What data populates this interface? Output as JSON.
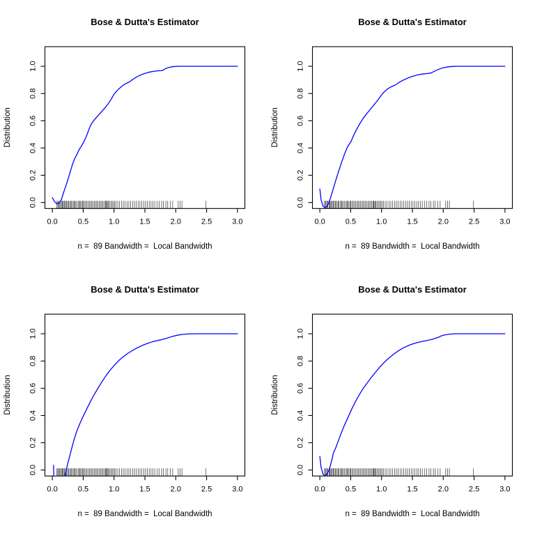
{
  "figure": {
    "background": "#ffffff",
    "curve_color": "#0000ff",
    "axis_color": "#000000",
    "rug_color": "#000000",
    "layout": "2x2 grid of identical R-style CDF plots"
  },
  "chart_data": [
    {
      "type": "line",
      "panel": "top-left",
      "title": "Bose & Dutta's Estimator",
      "xlabel": "n =  89 Bandwidth =  Local Bandwidth",
      "ylabel": "Distribution",
      "n": 89,
      "bandwidth": "Local Bandwidth",
      "xlim": [
        -0.12,
        3.12
      ],
      "ylim": [
        -0.044,
        1.144
      ],
      "xticks": [
        "0.0",
        "0.5",
        "1.0",
        "1.5",
        "2.0",
        "2.5",
        "3.0"
      ],
      "xtick_values": [
        0,
        0.5,
        1.0,
        1.5,
        2.0,
        2.5,
        3.0
      ],
      "yticks": [
        "0.0",
        "0.2",
        "0.4",
        "0.6",
        "0.8",
        "1.0"
      ],
      "ytick_values": [
        0,
        0.2,
        0.4,
        0.6,
        0.8,
        1.0
      ],
      "grid": false,
      "legend": null,
      "line_color": "#0000ff",
      "curve": [
        [
          0.0,
          0.035
        ],
        [
          0.03,
          0.01
        ],
        [
          0.06,
          -0.005
        ],
        [
          0.09,
          -0.01
        ],
        [
          0.12,
          0.0
        ],
        [
          0.15,
          0.025
        ],
        [
          0.18,
          0.07
        ],
        [
          0.21,
          0.11
        ],
        [
          0.24,
          0.15
        ],
        [
          0.27,
          0.195
        ],
        [
          0.3,
          0.24
        ],
        [
          0.33,
          0.285
        ],
        [
          0.36,
          0.32
        ],
        [
          0.39,
          0.345
        ],
        [
          0.42,
          0.375
        ],
        [
          0.45,
          0.4
        ],
        [
          0.48,
          0.42
        ],
        [
          0.52,
          0.455
        ],
        [
          0.56,
          0.495
        ],
        [
          0.6,
          0.545
        ],
        [
          0.63,
          0.575
        ],
        [
          0.66,
          0.595
        ],
        [
          0.7,
          0.617
        ],
        [
          0.75,
          0.643
        ],
        [
          0.8,
          0.668
        ],
        [
          0.85,
          0.693
        ],
        [
          0.9,
          0.722
        ],
        [
          0.95,
          0.755
        ],
        [
          1.0,
          0.795
        ],
        [
          1.05,
          0.822
        ],
        [
          1.1,
          0.843
        ],
        [
          1.15,
          0.862
        ],
        [
          1.2,
          0.875
        ],
        [
          1.25,
          0.885
        ],
        [
          1.3,
          0.903
        ],
        [
          1.36,
          0.92
        ],
        [
          1.43,
          0.936
        ],
        [
          1.5,
          0.948
        ],
        [
          1.57,
          0.957
        ],
        [
          1.64,
          0.963
        ],
        [
          1.71,
          0.967
        ],
        [
          1.78,
          0.968
        ],
        [
          1.83,
          0.982
        ],
        [
          1.89,
          0.992
        ],
        [
          1.96,
          0.998
        ],
        [
          2.05,
          1.0
        ],
        [
          2.15,
          1.0
        ],
        [
          3.0,
          1.0
        ]
      ],
      "rug_x": [
        0.07,
        0.09,
        0.1,
        0.12,
        0.13,
        0.15,
        0.16,
        0.17,
        0.19,
        0.2,
        0.22,
        0.23,
        0.25,
        0.26,
        0.28,
        0.3,
        0.31,
        0.33,
        0.35,
        0.36,
        0.38,
        0.4,
        0.42,
        0.44,
        0.45,
        0.47,
        0.49,
        0.5,
        0.52,
        0.54,
        0.56,
        0.58,
        0.6,
        0.62,
        0.64,
        0.66,
        0.68,
        0.7,
        0.72,
        0.74,
        0.76,
        0.78,
        0.8,
        0.82,
        0.84,
        0.86,
        0.87,
        0.88,
        0.9,
        0.91,
        0.93,
        0.95,
        0.97,
        0.99,
        1.01,
        1.03,
        1.06,
        1.09,
        1.12,
        1.15,
        1.18,
        1.21,
        1.24,
        1.27,
        1.3,
        1.33,
        1.36,
        1.39,
        1.42,
        1.45,
        1.48,
        1.51,
        1.54,
        1.57,
        1.6,
        1.63,
        1.66,
        1.7,
        1.73,
        1.77,
        1.8,
        1.84,
        1.87,
        1.91,
        1.95,
        2.04,
        2.07,
        2.1,
        2.49
      ]
    },
    {
      "type": "line",
      "panel": "top-right",
      "title": "Bose & Dutta's Estimator",
      "xlabel": "n =  89 Bandwidth =  Local Bandwidth",
      "ylabel": "Distribution",
      "n": 89,
      "bandwidth": "Local Bandwidth",
      "xlim": [
        -0.12,
        3.12
      ],
      "ylim": [
        -0.044,
        1.144
      ],
      "xticks": [
        "0.0",
        "0.5",
        "1.0",
        "1.5",
        "2.0",
        "2.5",
        "3.0"
      ],
      "xtick_values": [
        0,
        0.5,
        1.0,
        1.5,
        2.0,
        2.5,
        3.0
      ],
      "yticks": [
        "0.0",
        "0.2",
        "0.4",
        "0.6",
        "0.8",
        "1.0"
      ],
      "ytick_values": [
        0,
        0.2,
        0.4,
        0.6,
        0.8,
        1.0
      ],
      "grid": false,
      "legend": null,
      "line_color": "#0000ff",
      "curve": [
        [
          0.0,
          0.1
        ],
        [
          0.02,
          0.02
        ],
        [
          0.05,
          -0.025
        ],
        [
          0.08,
          -0.038
        ],
        [
          0.11,
          -0.03
        ],
        [
          0.14,
          -0.008
        ],
        [
          0.17,
          0.03
        ],
        [
          0.2,
          0.075
        ],
        [
          0.24,
          0.135
        ],
        [
          0.28,
          0.195
        ],
        [
          0.32,
          0.25
        ],
        [
          0.36,
          0.305
        ],
        [
          0.4,
          0.355
        ],
        [
          0.45,
          0.41
        ],
        [
          0.5,
          0.443
        ],
        [
          0.55,
          0.495
        ],
        [
          0.6,
          0.54
        ],
        [
          0.65,
          0.58
        ],
        [
          0.7,
          0.617
        ],
        [
          0.76,
          0.652
        ],
        [
          0.82,
          0.685
        ],
        [
          0.88,
          0.718
        ],
        [
          0.94,
          0.752
        ],
        [
          1.0,
          0.79
        ],
        [
          1.05,
          0.815
        ],
        [
          1.1,
          0.835
        ],
        [
          1.16,
          0.85
        ],
        [
          1.22,
          0.862
        ],
        [
          1.28,
          0.88
        ],
        [
          1.35,
          0.898
        ],
        [
          1.42,
          0.913
        ],
        [
          1.5,
          0.926
        ],
        [
          1.58,
          0.936
        ],
        [
          1.66,
          0.943
        ],
        [
          1.74,
          0.947
        ],
        [
          1.8,
          0.95
        ],
        [
          1.85,
          0.962
        ],
        [
          1.91,
          0.975
        ],
        [
          1.98,
          0.987
        ],
        [
          2.05,
          0.994
        ],
        [
          2.12,
          0.998
        ],
        [
          2.22,
          1.0
        ],
        [
          3.0,
          1.0
        ]
      ],
      "rug_x": [
        0.07,
        0.09,
        0.1,
        0.12,
        0.13,
        0.15,
        0.16,
        0.17,
        0.19,
        0.2,
        0.22,
        0.23,
        0.25,
        0.26,
        0.28,
        0.3,
        0.31,
        0.33,
        0.35,
        0.36,
        0.38,
        0.4,
        0.42,
        0.44,
        0.45,
        0.47,
        0.49,
        0.5,
        0.52,
        0.54,
        0.56,
        0.58,
        0.6,
        0.62,
        0.64,
        0.66,
        0.68,
        0.7,
        0.72,
        0.74,
        0.76,
        0.78,
        0.8,
        0.82,
        0.84,
        0.86,
        0.87,
        0.88,
        0.9,
        0.91,
        0.93,
        0.95,
        0.97,
        0.99,
        1.01,
        1.03,
        1.06,
        1.09,
        1.12,
        1.15,
        1.18,
        1.21,
        1.24,
        1.27,
        1.3,
        1.33,
        1.36,
        1.39,
        1.42,
        1.45,
        1.48,
        1.51,
        1.54,
        1.57,
        1.6,
        1.63,
        1.66,
        1.7,
        1.73,
        1.77,
        1.8,
        1.84,
        1.87,
        1.91,
        1.95,
        2.04,
        2.07,
        2.1,
        2.49
      ]
    },
    {
      "type": "line",
      "panel": "bottom-left",
      "title": "Bose & Dutta's Estimator",
      "xlabel": "n =  89 Bandwidth =  Local Bandwidth",
      "ylabel": "Distribution",
      "n": 89,
      "bandwidth": "Local Bandwidth",
      "xlim": [
        -0.12,
        3.12
      ],
      "ylim": [
        -0.044,
        1.144
      ],
      "xticks": [
        "0.0",
        "0.5",
        "1.0",
        "1.5",
        "2.0",
        "2.5",
        "3.0"
      ],
      "xtick_values": [
        0,
        0.5,
        1.0,
        1.5,
        2.0,
        2.5,
        3.0
      ],
      "yticks": [
        "0.0",
        "0.2",
        "0.4",
        "0.6",
        "0.8",
        "1.0"
      ],
      "ytick_values": [
        0,
        0.2,
        0.4,
        0.6,
        0.8,
        1.0
      ],
      "grid": false,
      "legend": null,
      "line_color": "#0000ff",
      "curve": [
        [
          0.02,
          0.035
        ],
        [
          0.025,
          -0.06
        ],
        [
          0.05,
          -0.12
        ],
        [
          0.12,
          -0.15
        ],
        [
          0.18,
          -0.09
        ],
        [
          0.205,
          -0.044
        ],
        [
          0.225,
          0.0
        ],
        [
          0.26,
          0.065
        ],
        [
          0.3,
          0.135
        ],
        [
          0.35,
          0.22
        ],
        [
          0.4,
          0.29
        ],
        [
          0.45,
          0.345
        ],
        [
          0.5,
          0.395
        ],
        [
          0.56,
          0.45
        ],
        [
          0.62,
          0.505
        ],
        [
          0.68,
          0.555
        ],
        [
          0.74,
          0.6
        ],
        [
          0.8,
          0.645
        ],
        [
          0.87,
          0.693
        ],
        [
          0.94,
          0.735
        ],
        [
          1.01,
          0.772
        ],
        [
          1.08,
          0.805
        ],
        [
          1.15,
          0.832
        ],
        [
          1.22,
          0.855
        ],
        [
          1.3,
          0.878
        ],
        [
          1.38,
          0.898
        ],
        [
          1.46,
          0.915
        ],
        [
          1.54,
          0.929
        ],
        [
          1.62,
          0.941
        ],
        [
          1.7,
          0.95
        ],
        [
          1.78,
          0.958
        ],
        [
          1.86,
          0.968
        ],
        [
          1.94,
          0.98
        ],
        [
          2.02,
          0.989
        ],
        [
          2.1,
          0.995
        ],
        [
          2.2,
          0.999
        ],
        [
          2.35,
          1.0
        ],
        [
          3.0,
          1.0
        ]
      ],
      "rug_x": [
        0.07,
        0.09,
        0.1,
        0.12,
        0.13,
        0.15,
        0.16,
        0.17,
        0.19,
        0.2,
        0.22,
        0.23,
        0.25,
        0.26,
        0.28,
        0.3,
        0.31,
        0.33,
        0.35,
        0.36,
        0.38,
        0.4,
        0.42,
        0.44,
        0.45,
        0.47,
        0.49,
        0.5,
        0.52,
        0.54,
        0.56,
        0.58,
        0.6,
        0.62,
        0.64,
        0.66,
        0.68,
        0.7,
        0.72,
        0.74,
        0.76,
        0.78,
        0.8,
        0.82,
        0.84,
        0.86,
        0.87,
        0.88,
        0.9,
        0.91,
        0.93,
        0.95,
        0.97,
        0.99,
        1.01,
        1.03,
        1.06,
        1.09,
        1.12,
        1.15,
        1.18,
        1.21,
        1.24,
        1.27,
        1.3,
        1.33,
        1.36,
        1.39,
        1.42,
        1.45,
        1.48,
        1.51,
        1.54,
        1.57,
        1.6,
        1.63,
        1.66,
        1.7,
        1.73,
        1.77,
        1.8,
        1.84,
        1.87,
        1.91,
        1.95,
        2.04,
        2.07,
        2.1,
        2.49
      ]
    },
    {
      "type": "line",
      "panel": "bottom-right",
      "title": "Bose & Dutta's Estimator",
      "xlabel": "n =  89 Bandwidth =  Local Bandwidth",
      "ylabel": "Distribution",
      "n": 89,
      "bandwidth": "Local Bandwidth",
      "xlim": [
        -0.12,
        3.12
      ],
      "ylim": [
        -0.044,
        1.144
      ],
      "xticks": [
        "0.0",
        "0.5",
        "1.0",
        "1.5",
        "2.0",
        "2.5",
        "3.0"
      ],
      "xtick_values": [
        0,
        0.5,
        1.0,
        1.5,
        2.0,
        2.5,
        3.0
      ],
      "yticks": [
        "0.0",
        "0.2",
        "0.4",
        "0.6",
        "0.8",
        "1.0"
      ],
      "ytick_values": [
        0,
        0.2,
        0.4,
        0.6,
        0.8,
        1.0
      ],
      "grid": false,
      "legend": null,
      "line_color": "#0000ff",
      "curve": [
        [
          0.0,
          0.1
        ],
        [
          0.02,
          0.02
        ],
        [
          0.05,
          -0.03
        ],
        [
          0.08,
          -0.042
        ],
        [
          0.11,
          -0.032
        ],
        [
          0.14,
          -0.01
        ],
        [
          0.17,
          0.03
        ],
        [
          0.2,
          0.085
        ],
        [
          0.22,
          0.125
        ],
        [
          0.26,
          0.165
        ],
        [
          0.3,
          0.215
        ],
        [
          0.35,
          0.275
        ],
        [
          0.4,
          0.33
        ],
        [
          0.46,
          0.39
        ],
        [
          0.52,
          0.45
        ],
        [
          0.58,
          0.505
        ],
        [
          0.64,
          0.553
        ],
        [
          0.7,
          0.597
        ],
        [
          0.77,
          0.64
        ],
        [
          0.84,
          0.683
        ],
        [
          0.91,
          0.722
        ],
        [
          0.98,
          0.76
        ],
        [
          1.05,
          0.793
        ],
        [
          1.12,
          0.822
        ],
        [
          1.2,
          0.852
        ],
        [
          1.28,
          0.877
        ],
        [
          1.36,
          0.898
        ],
        [
          1.44,
          0.915
        ],
        [
          1.52,
          0.928
        ],
        [
          1.6,
          0.938
        ],
        [
          1.68,
          0.946
        ],
        [
          1.76,
          0.953
        ],
        [
          1.84,
          0.962
        ],
        [
          1.92,
          0.974
        ],
        [
          1.97,
          0.985
        ],
        [
          2.02,
          0.991
        ],
        [
          2.1,
          0.997
        ],
        [
          2.2,
          1.0
        ],
        [
          3.0,
          1.0
        ]
      ],
      "rug_x": [
        0.07,
        0.09,
        0.1,
        0.12,
        0.13,
        0.15,
        0.16,
        0.17,
        0.19,
        0.2,
        0.22,
        0.23,
        0.25,
        0.26,
        0.28,
        0.3,
        0.31,
        0.33,
        0.35,
        0.36,
        0.38,
        0.4,
        0.42,
        0.44,
        0.45,
        0.47,
        0.49,
        0.5,
        0.52,
        0.54,
        0.56,
        0.58,
        0.6,
        0.62,
        0.64,
        0.66,
        0.68,
        0.7,
        0.72,
        0.74,
        0.76,
        0.78,
        0.8,
        0.82,
        0.84,
        0.86,
        0.87,
        0.88,
        0.9,
        0.91,
        0.93,
        0.95,
        0.97,
        0.99,
        1.01,
        1.03,
        1.06,
        1.09,
        1.12,
        1.15,
        1.18,
        1.21,
        1.24,
        1.27,
        1.3,
        1.33,
        1.36,
        1.39,
        1.42,
        1.45,
        1.48,
        1.51,
        1.54,
        1.57,
        1.6,
        1.63,
        1.66,
        1.7,
        1.73,
        1.77,
        1.8,
        1.84,
        1.87,
        1.91,
        1.95,
        2.04,
        2.07,
        2.1,
        2.49
      ]
    }
  ]
}
